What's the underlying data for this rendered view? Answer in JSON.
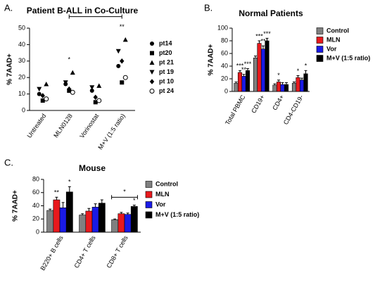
{
  "chart_data": [
    {
      "type": "scatter",
      "panel_label": "A.",
      "title": "Patient B-ALL in Co-Culture",
      "y_label": "% 7AAD+",
      "categories": [
        "Untreated",
        "MLN0128",
        "Vorinostat",
        "M+V (1:5 ratio)"
      ],
      "ylim": [
        0,
        50
      ],
      "yticks": [
        0,
        10,
        20,
        30,
        40,
        50
      ],
      "series": [
        {
          "name": "pt14",
          "marker": "circle",
          "values": [
            10,
            16,
            12,
            27
          ]
        },
        {
          "name": "pt20",
          "marker": "square",
          "values": [
            6,
            12,
            5,
            17
          ]
        },
        {
          "name": "pt 21",
          "marker": "triangle",
          "values": [
            16,
            23,
            15,
            43
          ]
        },
        {
          "name": "pt 19",
          "marker": "triangle-down",
          "values": [
            13,
            17,
            14,
            36
          ]
        },
        {
          "name": "pt 10",
          "marker": "diamond",
          "values": [
            9,
            13,
            8,
            30
          ]
        },
        {
          "name": "pt 24",
          "marker": "open-circle",
          "values": [
            7,
            11,
            6,
            20
          ]
        }
      ],
      "significance": [
        null,
        "*",
        null,
        "**"
      ],
      "significance_color": "#3333ff",
      "brackets": [
        {
          "from": 1,
          "to": 3,
          "level": 57,
          "label": "*",
          "color": "#3333ff"
        }
      ]
    },
    {
      "type": "bar",
      "panel_label": "B.",
      "title": "Normal Patients",
      "y_label": "% 7AAD+",
      "categories": [
        "Total PBMC",
        "CD19+",
        "CD4+",
        "CD4-CD19-"
      ],
      "ylim": [
        0,
        100
      ],
      "yticks": [
        0,
        20,
        40,
        60,
        80,
        100
      ],
      "series": [
        {
          "name": "Control",
          "color": "#808080",
          "values": [
            13,
            53,
            10,
            13
          ],
          "errors": [
            2,
            3,
            2,
            2
          ],
          "significance": [
            null,
            null,
            null,
            null
          ]
        },
        {
          "name": "MLN",
          "color": "#e8191d",
          "values": [
            30,
            76,
            15,
            22
          ],
          "errors": [
            3,
            4,
            3,
            3
          ],
          "significance": [
            "***",
            "***",
            "*",
            "*"
          ]
        },
        {
          "name": "Vor",
          "color": "#1a1ae6",
          "values": [
            24,
            67,
            11,
            18
          ],
          "errors": [
            3,
            5,
            3,
            3
          ],
          "significance": [
            "**",
            "**",
            null,
            null
          ]
        },
        {
          "name": "M+V (1:5 ratio)",
          "color": "#000000",
          "values": [
            33,
            80,
            11,
            28
          ],
          "errors": [
            3,
            4,
            3,
            5
          ],
          "significance": [
            "***",
            "***",
            null,
            "*"
          ]
        }
      ]
    },
    {
      "type": "bar",
      "panel_label": "C.",
      "title": "Mouse",
      "y_label": "% 7AAD+",
      "categories": [
        "B220+ B cells",
        "CD4+ T cells",
        "CD8+ T cells"
      ],
      "ylim": [
        0,
        80
      ],
      "yticks": [
        0,
        20,
        40,
        60,
        80
      ],
      "series": [
        {
          "name": "Control",
          "color": "#808080",
          "values": [
            33,
            26,
            19
          ],
          "errors": [
            2,
            2,
            1
          ],
          "significance": [
            null,
            null,
            null
          ]
        },
        {
          "name": "MLN",
          "color": "#e8191d",
          "values": [
            49,
            32,
            28
          ],
          "errors": [
            4,
            4,
            2
          ],
          "significance": [
            "**",
            null,
            null
          ]
        },
        {
          "name": "Vor",
          "color": "#1a1ae6",
          "values": [
            37,
            38,
            27
          ],
          "errors": [
            8,
            5,
            2
          ],
          "significance": [
            null,
            null,
            null
          ]
        },
        {
          "name": "M+V (1:5 ratio)",
          "color": "#000000",
          "values": [
            61,
            44,
            39
          ],
          "errors": [
            8,
            5,
            2
          ],
          "significance": [
            "*",
            null,
            "*"
          ]
        }
      ],
      "brackets": [
        {
          "from": 2,
          "to": 2,
          "level": 53,
          "label": "*",
          "color": "#000000"
        }
      ]
    }
  ]
}
